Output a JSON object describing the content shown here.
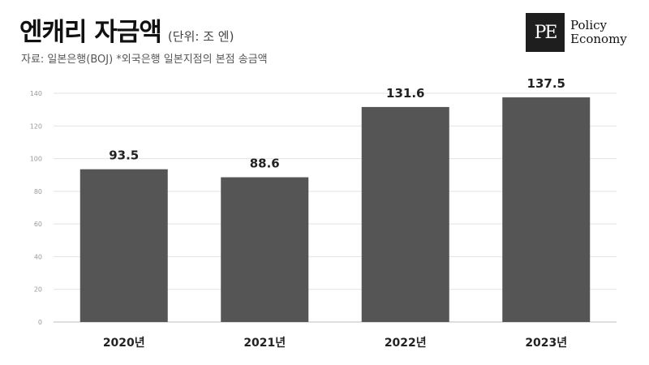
{
  "header": {
    "title": "엔캐리 자금액",
    "unit": "(단위: 조 엔)",
    "source": "자료: 일본은행(BOJ) *외국은행 일본지점의 본점 송금액"
  },
  "logo": {
    "mark": "PE",
    "line1": "Policy",
    "line2": "Economy"
  },
  "chart_data": {
    "type": "bar",
    "title": "엔캐리 자금액",
    "subtitle": "(단위: 조 엔)",
    "categories": [
      "2020년",
      "2021년",
      "2022년",
      "2023년"
    ],
    "values": [
      93.5,
      88.6,
      131.6,
      137.5
    ],
    "value_labels": [
      "93.5",
      "88.6",
      "131.6",
      "137.5"
    ],
    "yticks": [
      "0",
      "20",
      "40",
      "60",
      "80",
      "100",
      "120",
      "140"
    ],
    "ylim": [
      0,
      140
    ],
    "grid": true,
    "bar_color": "#555555"
  }
}
